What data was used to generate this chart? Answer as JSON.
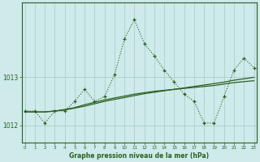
{
  "title": "Graphe pression niveau de la mer (hPa)",
  "bg_color": "#ceeaea",
  "grid_color": "#a8c8c8",
  "line_color": "#2a6020",
  "x_values": [
    0,
    1,
    2,
    3,
    4,
    5,
    6,
    7,
    8,
    9,
    10,
    11,
    12,
    13,
    14,
    15,
    16,
    17,
    18,
    19,
    20,
    21,
    22,
    23
  ],
  "y_main": [
    1012.3,
    1012.3,
    1012.05,
    1012.3,
    1012.3,
    1012.5,
    1012.75,
    1012.5,
    1012.6,
    1013.05,
    1013.8,
    1014.2,
    1013.7,
    1013.45,
    1013.15,
    1012.9,
    1012.65,
    1012.5,
    1012.05,
    1012.05,
    1012.6,
    1013.15,
    1013.4,
    1013.2
  ],
  "y_smooth1": [
    1012.28,
    1012.28,
    1012.28,
    1012.3,
    1012.32,
    1012.36,
    1012.4,
    1012.45,
    1012.5,
    1012.54,
    1012.58,
    1012.62,
    1012.66,
    1012.69,
    1012.72,
    1012.75,
    1012.78,
    1012.81,
    1012.84,
    1012.87,
    1012.9,
    1012.94,
    1012.97,
    1013.0
  ],
  "y_smooth2": [
    1012.28,
    1012.28,
    1012.28,
    1012.3,
    1012.33,
    1012.37,
    1012.43,
    1012.48,
    1012.53,
    1012.57,
    1012.61,
    1012.65,
    1012.68,
    1012.71,
    1012.73,
    1012.75,
    1012.77,
    1012.79,
    1012.81,
    1012.83,
    1012.86,
    1012.89,
    1012.91,
    1012.93
  ],
  "yticks": [
    1012,
    1013
  ],
  "ylim": [
    1011.65,
    1014.55
  ],
  "xlim": [
    -0.3,
    23.3
  ],
  "ylabel_x_pos": 0.5
}
